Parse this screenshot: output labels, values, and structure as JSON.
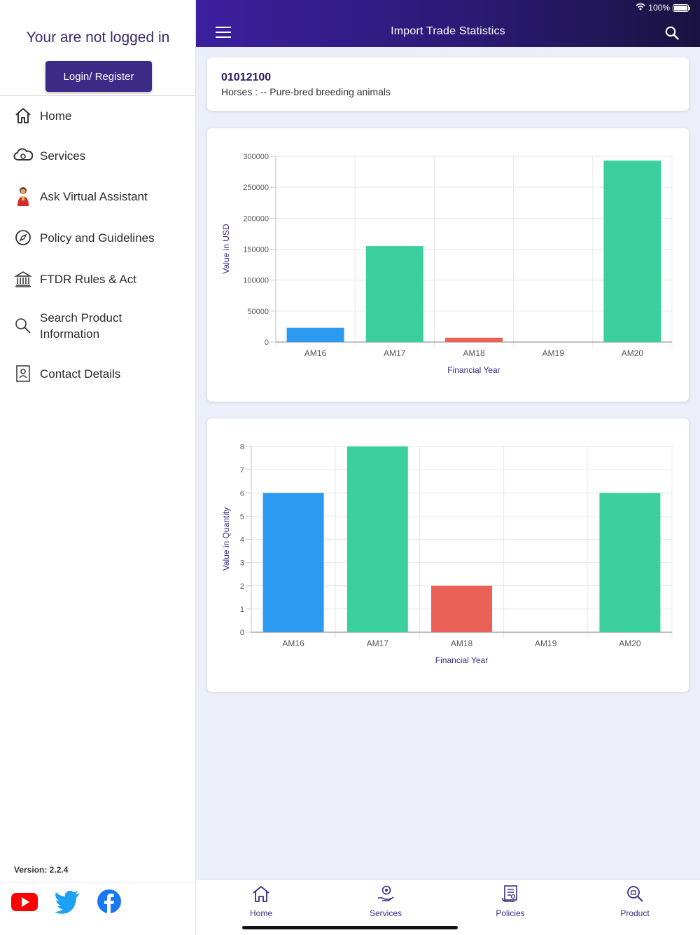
{
  "status_bar": {
    "battery": "100%"
  },
  "header": {
    "title": "Import Trade Statistics"
  },
  "sidebar": {
    "login_message": "Your are not logged in",
    "login_button": "Login/ Register",
    "items": [
      {
        "label": "Home",
        "icon": "home-icon"
      },
      {
        "label": "Services",
        "icon": "cloud-services-icon"
      },
      {
        "label": "Ask Virtual Assistant",
        "icon": "assistant-avatar-icon"
      },
      {
        "label": "Policy and Guidelines",
        "icon": "compass-icon"
      },
      {
        "label": "FTDR Rules & Act",
        "icon": "bank-building-icon"
      },
      {
        "label": "Search Product Information",
        "icon": "search-icon"
      },
      {
        "label": "Contact Details",
        "icon": "contact-card-icon"
      }
    ],
    "version": "Version: 2.2.4",
    "social": [
      {
        "name": "youtube",
        "color": "#ff0000"
      },
      {
        "name": "twitter",
        "color": "#1da1f2"
      },
      {
        "name": "facebook",
        "color": "#1877f2"
      }
    ]
  },
  "product": {
    "code": "01012100",
    "description": "Horses : -- Pure-bred breeding animals"
  },
  "chart_data": [
    {
      "type": "bar",
      "categories": [
        "AM16",
        "AM17",
        "AM18",
        "AM19",
        "AM20"
      ],
      "values": [
        23000,
        155000,
        7000,
        0,
        293000
      ],
      "colors": [
        "#2b9af0",
        "#3ccf9e",
        "#ec6157",
        "#3ccf9e",
        "#3ccf9e"
      ],
      "xlabel": "Financial Year",
      "ylabel": "Value in USD",
      "ylim": [
        0,
        300000
      ],
      "yticks": [
        0,
        50000,
        100000,
        150000,
        200000,
        250000,
        300000
      ],
      "grid": true
    },
    {
      "type": "bar",
      "categories": [
        "AM16",
        "AM17",
        "AM18",
        "AM19",
        "AM20"
      ],
      "values": [
        6,
        8,
        2,
        0,
        6
      ],
      "colors": [
        "#2b9af0",
        "#3ccf9e",
        "#ec6157",
        "#3ccf9e",
        "#3ccf9e"
      ],
      "xlabel": "Financial Year",
      "ylabel": "Value in Quantity",
      "ylim": [
        0,
        8
      ],
      "yticks": [
        0,
        1,
        2,
        3,
        4,
        5,
        6,
        7,
        8
      ],
      "grid": true
    }
  ],
  "bottom_nav": [
    {
      "label": "Home",
      "icon": "home-icon"
    },
    {
      "label": "Services",
      "icon": "services-hand-icon"
    },
    {
      "label": "Policies",
      "icon": "policy-document-icon"
    },
    {
      "label": "Product",
      "icon": "product-search-icon"
    }
  ]
}
